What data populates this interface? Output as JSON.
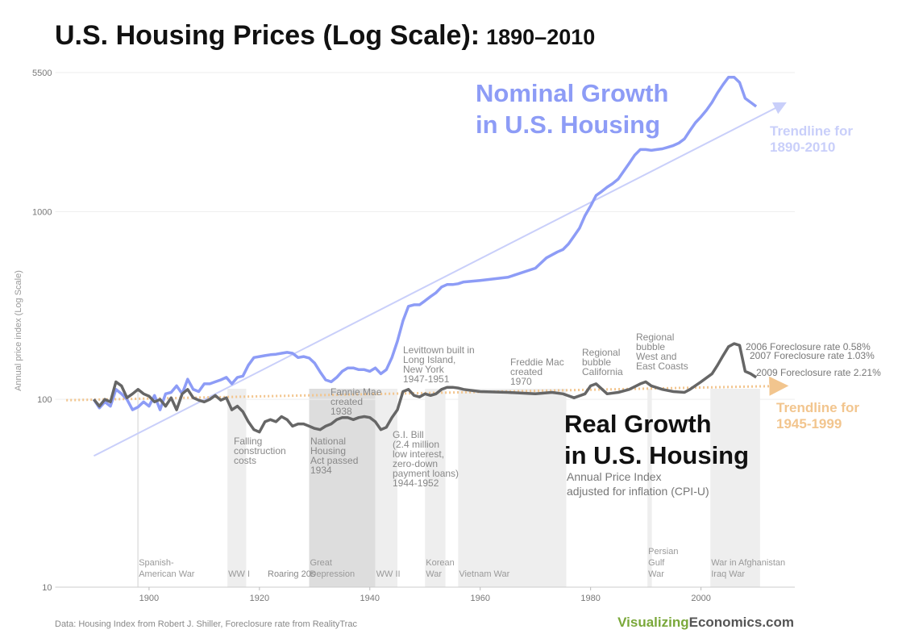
{
  "chart_data": {
    "type": "line",
    "title": "U.S. Housing Prices (Log Scale):",
    "title_years": "1890–2010",
    "y_label": "Annual price index (Log Scale)",
    "source": "Data: Housing Index from Robert J. Shiller, Foreclosure rate from RealityTrac",
    "brand": [
      "Visualizing",
      "Economics.com"
    ],
    "log_y": true,
    "grid": true,
    "xlim": [
      1883,
      2017
    ],
    "xticks": [
      1900,
      1920,
      1940,
      1960,
      1980,
      2000
    ],
    "ylim": [
      10,
      5500
    ],
    "yticks": [
      10,
      100,
      1000,
      5500
    ],
    "series": [
      {
        "name": [
          "Nominal Growth",
          "in U.S. Housing"
        ],
        "color": "#8d9cf6",
        "x": [
          1890,
          1891,
          1892,
          1893,
          1894,
          1895,
          1896,
          1897,
          1898,
          1899,
          1900,
          1901,
          1902,
          1903,
          1904,
          1905,
          1906,
          1907,
          1908,
          1909,
          1910,
          1911,
          1912,
          1913,
          1914,
          1915,
          1916,
          1917,
          1918,
          1919,
          1920,
          1921,
          1922,
          1923,
          1924,
          1925,
          1926,
          1927,
          1928,
          1929,
          1930,
          1931,
          1932,
          1933,
          1934,
          1935,
          1936,
          1937,
          1938,
          1939,
          1940,
          1941,
          1942,
          1943,
          1944,
          1945,
          1946,
          1947,
          1948,
          1949,
          1950,
          1951,
          1952,
          1953,
          1954,
          1955,
          1956,
          1957,
          1960,
          1965,
          1970,
          1972,
          1974,
          1975,
          1976,
          1977,
          1978,
          1979,
          1980,
          1981,
          1982,
          1983,
          1984,
          1985,
          1986,
          1987,
          1988,
          1989,
          1990,
          1991,
          1992,
          1993,
          1994,
          1995,
          1996,
          1997,
          1998,
          1999,
          2000,
          2001,
          2002,
          2003,
          2004,
          2005,
          2006,
          2007,
          2008,
          2009,
          2010
        ],
        "values": [
          100,
          90,
          97,
          92,
          113,
          107,
          100,
          88,
          91,
          97,
          92,
          105,
          88,
          107,
          109,
          118,
          107,
          128,
          113,
          110,
          121,
          121,
          124,
          127,
          131,
          121,
          131,
          133,
          152,
          167,
          169,
          171,
          173,
          174,
          176,
          178,
          176,
          167,
          169,
          166,
          156,
          140,
          127,
          124,
          131,
          141,
          147,
          147,
          144,
          144,
          141,
          147,
          137,
          144,
          167,
          204,
          262,
          313,
          319,
          319,
          335,
          353,
          370,
          397,
          409,
          409,
          413,
          422,
          430,
          447,
          500,
          567,
          610,
          628,
          673,
          741,
          818,
          953,
          1071,
          1220,
          1280,
          1350,
          1410,
          1490,
          1640,
          1810,
          2000,
          2140,
          2140,
          2120,
          2140,
          2160,
          2200,
          2250,
          2320,
          2440,
          2700,
          2980,
          3200,
          3470,
          3820,
          4290,
          4750,
          5200,
          5200,
          4870,
          4010,
          3820,
          3630
        ]
      },
      {
        "name": [
          "Real Growth",
          "in U.S. Housing"
        ],
        "subtitle": [
          "Annual Price Index",
          "adjusted for inflation (CPI-U)"
        ],
        "color": "#666666",
        "x": [
          1890,
          1891,
          1892,
          1893,
          1894,
          1895,
          1896,
          1897,
          1898,
          1899,
          1900,
          1901,
          1902,
          1903,
          1904,
          1905,
          1906,
          1907,
          1908,
          1909,
          1910,
          1911,
          1912,
          1913,
          1914,
          1915,
          1916,
          1917,
          1918,
          1919,
          1920,
          1921,
          1922,
          1923,
          1924,
          1925,
          1926,
          1927,
          1928,
          1929,
          1930,
          1931,
          1932,
          1933,
          1934,
          1935,
          1936,
          1937,
          1938,
          1939,
          1940,
          1941,
          1942,
          1943,
          1944,
          1945,
          1946,
          1947,
          1948,
          1949,
          1950,
          1951,
          1952,
          1953,
          1954,
          1955,
          1956,
          1957,
          1960,
          1965,
          1970,
          1973,
          1975,
          1977,
          1979,
          1980,
          1981,
          1983,
          1985,
          1987,
          1989,
          1990,
          1991,
          1993,
          1995,
          1997,
          1998,
          2000,
          2002,
          2003,
          2004,
          2005,
          2006,
          2007,
          2008,
          2009,
          2010
        ],
        "values": [
          100,
          92,
          100,
          97,
          124,
          118,
          102,
          107,
          113,
          107,
          104,
          97,
          100,
          92,
          102,
          88,
          107,
          113,
          102,
          99,
          97,
          100,
          105,
          99,
          102,
          88,
          92,
          86,
          76,
          69,
          67,
          76,
          78,
          76,
          81,
          78,
          72,
          74,
          74,
          72,
          70,
          69,
          72,
          74,
          78,
          80,
          80,
          78,
          80,
          81,
          80,
          76,
          69,
          71,
          80,
          88,
          110,
          113,
          105,
          103,
          107,
          105,
          107,
          113,
          116,
          116,
          115,
          113,
          110,
          109,
          107,
          109,
          107,
          102,
          107,
          118,
          121,
          107,
          109,
          113,
          121,
          124,
          118,
          113,
          110,
          109,
          113,
          124,
          137,
          152,
          171,
          191,
          198,
          194,
          141,
          137,
          131
        ]
      }
    ],
    "trendlines": [
      {
        "label": [
          "Trendline for",
          "1890-2010"
        ],
        "color": "#c9cffa",
        "x": [
          1890,
          2015
        ],
        "values": [
          50,
          3750
        ]
      },
      {
        "label": [
          "Trendline for",
          "1945-1999"
        ],
        "color": "#f2c58e",
        "x": [
          1885,
          2015
        ],
        "values": [
          99,
          118
        ]
      }
    ],
    "periods": [
      {
        "label": [
          "Spanish-",
          "American War"
        ],
        "start": 1898,
        "end": 1898,
        "color": "#e6e6e6"
      },
      {
        "label": [
          "WW I"
        ],
        "start": 1914.2,
        "end": 1917.6,
        "color": "#eeeeee"
      },
      {
        "label": [
          "Great",
          "Depression"
        ],
        "start": 1929,
        "end": 1941,
        "color": "#dddddd"
      },
      {
        "label": [
          "WW II"
        ],
        "start": 1941,
        "end": 1945,
        "color": "#eeeeee"
      },
      {
        "label": [
          "Korean",
          "War"
        ],
        "start": 1950,
        "end": 1953.7,
        "color": "#eeeeee"
      },
      {
        "label": [
          "Vietnam War"
        ],
        "start": 1956,
        "end": 1975.6,
        "color": "#eeeeee"
      },
      {
        "label": [
          "Persian",
          "Gulf",
          "War"
        ],
        "start": 1990.3,
        "end": 1991.1,
        "color": "#eeeeee"
      },
      {
        "label": [
          "War in Afghanistan",
          "Iraq War"
        ],
        "start": 2001.7,
        "end": 2010.7,
        "color": "#eeeeee"
      }
    ],
    "annotations": [
      [
        "Roaring 20s"
      ],
      [
        "Fannie Mae",
        "created",
        "1938"
      ],
      [
        "Falling",
        "construction",
        "costs"
      ],
      [
        "National",
        "Housing",
        "Act passed",
        "1934"
      ],
      [
        "G.I. Bill",
        "(2.4 million",
        "low interest,",
        "zero-down",
        "payment loans)",
        "1944-1952"
      ],
      [
        "Levittown built in",
        "Long Island,",
        "New York",
        "1947-1951"
      ],
      [
        "Freddie Mac",
        "created",
        "1970"
      ],
      [
        "Regional",
        "bubble",
        "California"
      ],
      [
        "Regional",
        "bubble",
        "West and",
        "East Coasts"
      ],
      [
        "2006 Foreclosure rate 0.58%"
      ],
      [
        "2007 Foreclosure rate 1.03%"
      ],
      [
        "2009 Foreclosure rate 2.21%"
      ]
    ]
  }
}
